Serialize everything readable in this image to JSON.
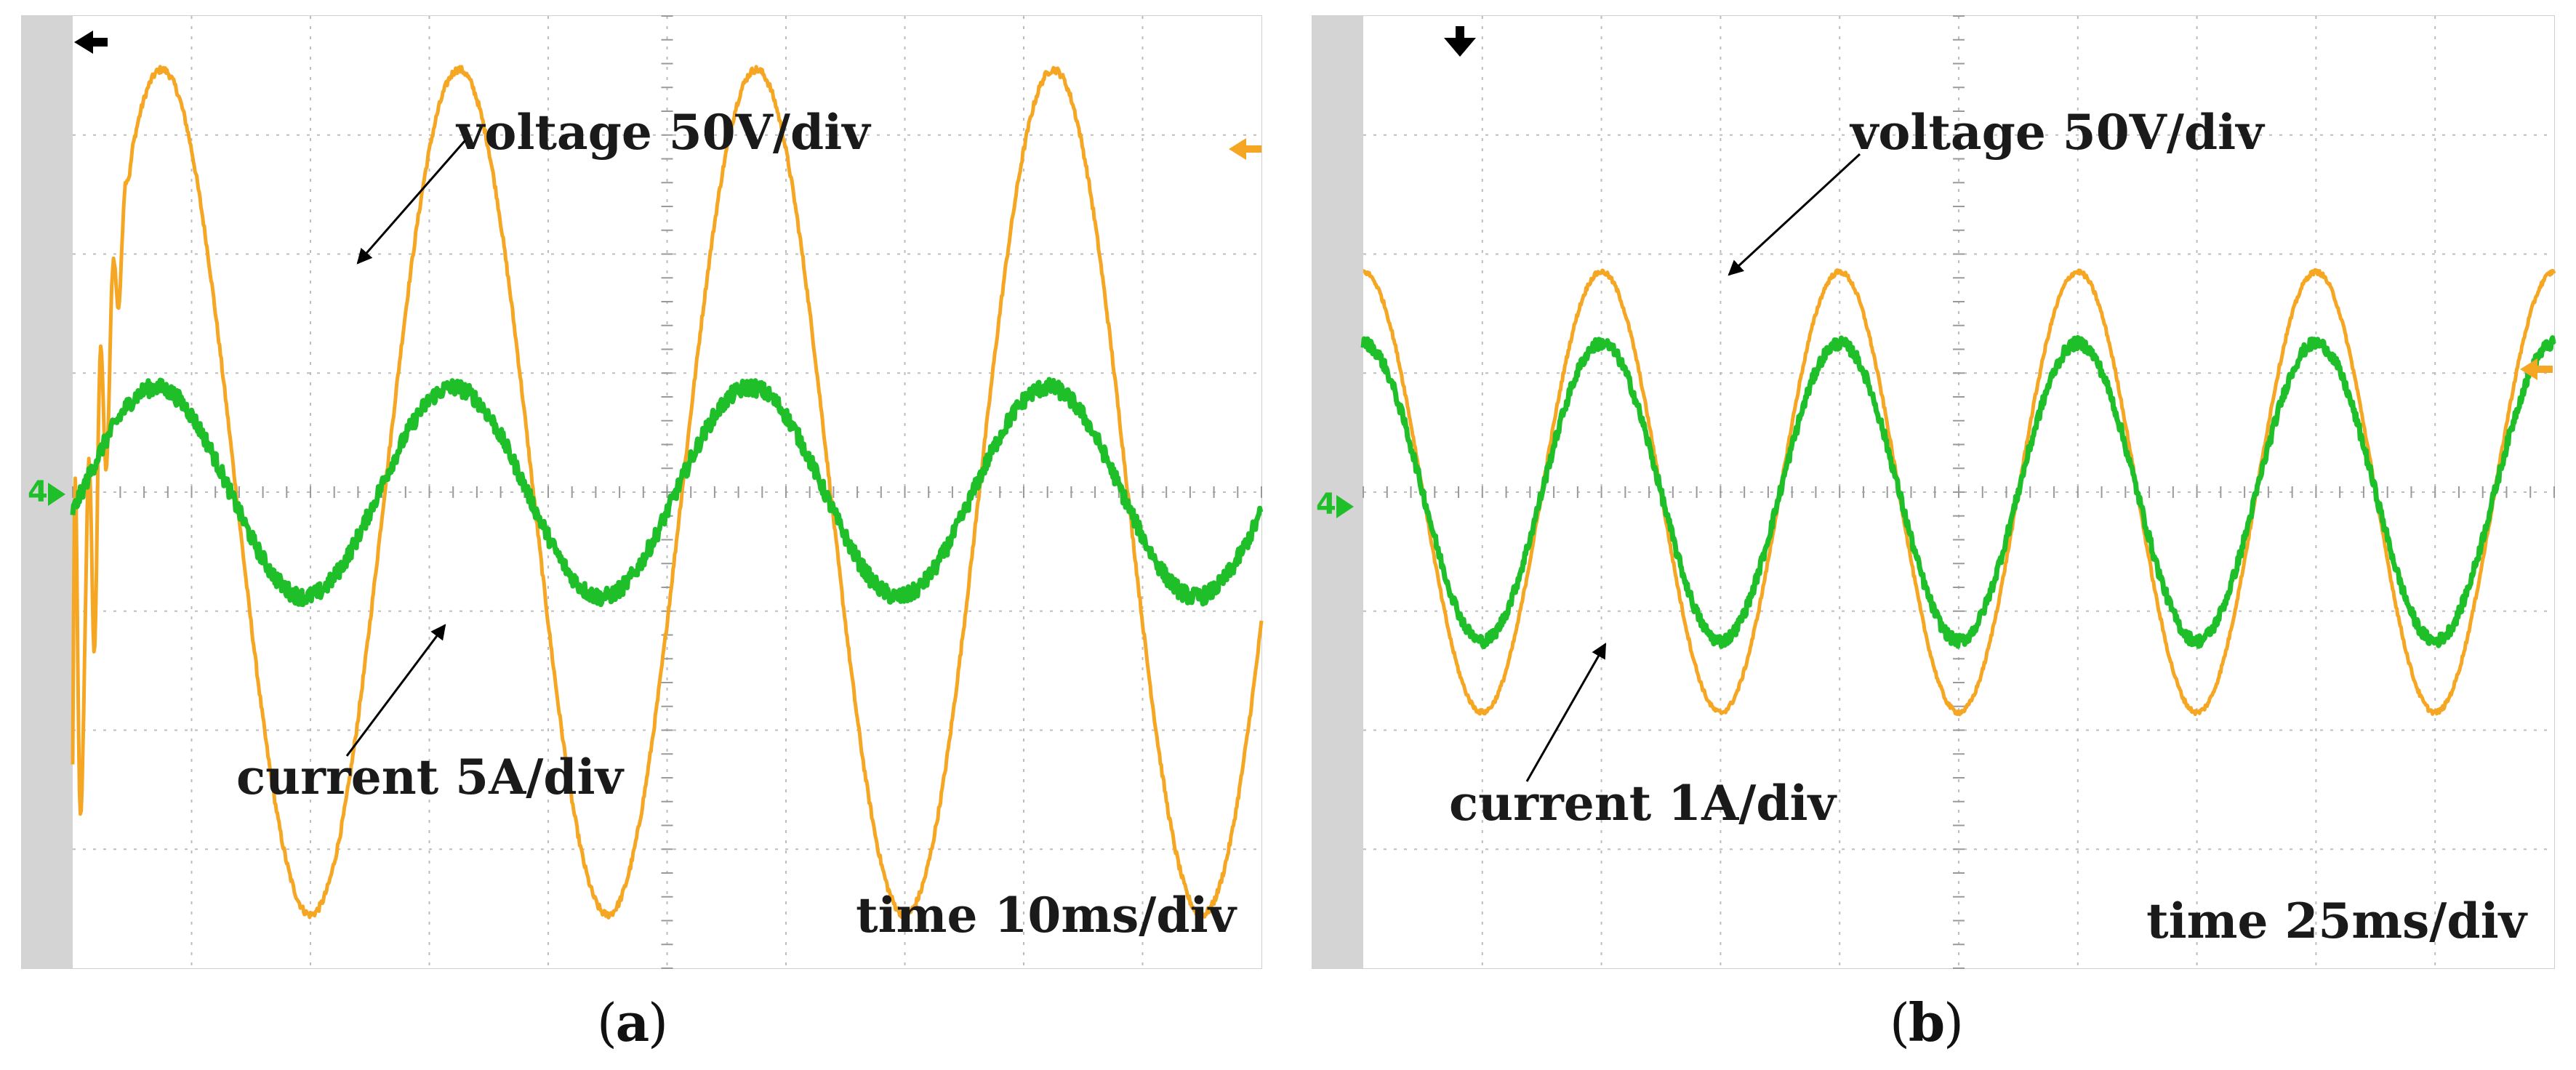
{
  "chart_data": [
    {
      "type": "line",
      "panel_label": "a",
      "annotations": {
        "voltage": "voltage 50V/div",
        "current": "current 5A/div",
        "time": "time 10ms/div"
      },
      "grid": true,
      "x_div": 10,
      "y_div": 8,
      "series": [
        {
          "key": "voltage",
          "color": "#f5a623",
          "center_div": 4.0,
          "amplitude_div": 3.55,
          "period_div": 2.5,
          "first_peak_div": 2.0,
          "noise_div": 0.03,
          "transient": true
        },
        {
          "key": "current",
          "color": "#1fbf2a",
          "center_div": 4.0,
          "amplitude_div": 0.88,
          "period_div": 2.5,
          "first_peak_div": 1.95,
          "noise_div": 0.07
        }
      ],
      "markers": {
        "trigger": "top-left",
        "voltage_ref": "right",
        "channel": "4"
      }
    },
    {
      "type": "line",
      "panel_label": "b",
      "annotations": {
        "voltage": "voltage 50V/div",
        "current": "current 1A/div",
        "time": "time 25ms/div"
      },
      "grid": true,
      "x_div": 10,
      "y_div": 8,
      "series": [
        {
          "key": "voltage",
          "color": "#f5a623",
          "center_div": 4.0,
          "amplitude_div": 1.85,
          "period_div": 2.0,
          "first_peak_div": 1.0,
          "noise_div": 0.02
        },
        {
          "key": "current",
          "color": "#1fbf2a",
          "center_div": 4.0,
          "amplitude_div": 1.25,
          "period_div": 2.0,
          "first_peak_div": 1.0,
          "noise_div": 0.05
        }
      ],
      "markers": {
        "trigger": "top-left",
        "voltage_ref": "right",
        "channel": "4"
      }
    }
  ]
}
